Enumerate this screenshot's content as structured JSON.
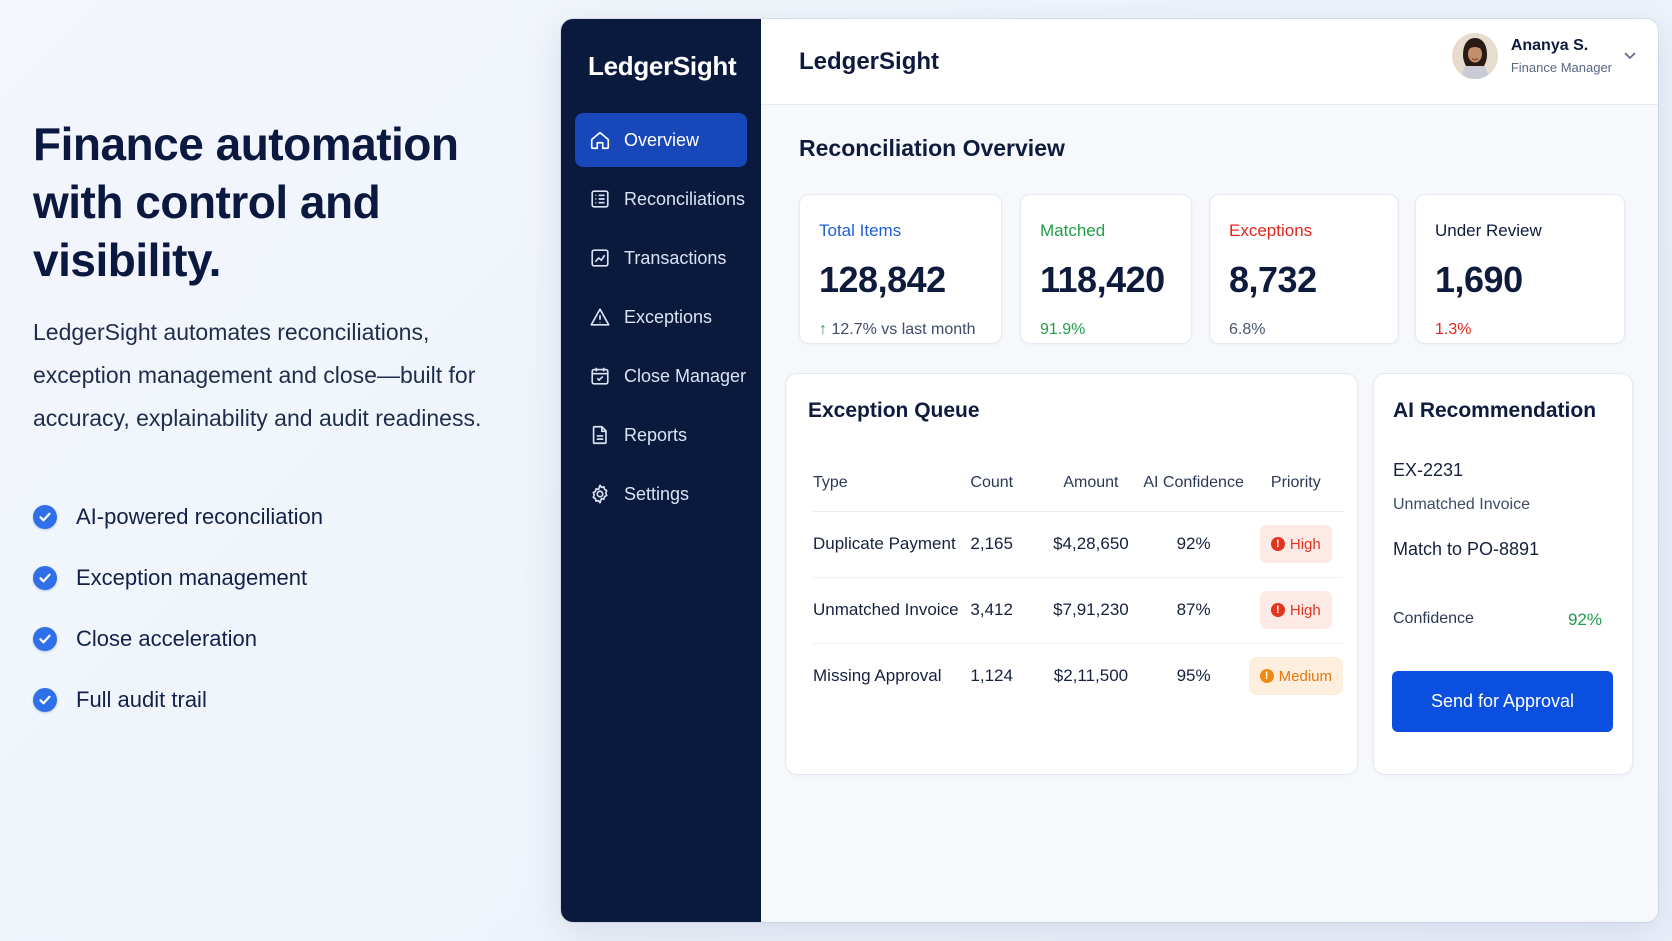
{
  "hero": {
    "headline": "Finance automation with control and visibility.",
    "description": "LedgerSight automates reconciliations, exception management and close—built for accuracy, explainability and audit readiness.",
    "features": [
      "AI-powered reconciliation",
      "Exception management",
      "Close acceleration",
      "Full audit trail"
    ]
  },
  "sidebar": {
    "brand": "LedgerSight",
    "items": [
      {
        "label": "Overview",
        "icon": "home-icon",
        "active": true
      },
      {
        "label": "Reconciliations",
        "icon": "list-icon",
        "active": false
      },
      {
        "label": "Transactions",
        "icon": "chart-icon",
        "active": false
      },
      {
        "label": "Exceptions",
        "icon": "warning-icon",
        "active": false
      },
      {
        "label": "Close Manager",
        "icon": "calendar-icon",
        "active": false
      },
      {
        "label": "Reports",
        "icon": "document-icon",
        "active": false
      },
      {
        "label": "Settings",
        "icon": "gear-icon",
        "active": false
      }
    ]
  },
  "topbar": {
    "title": "LedgerSight",
    "user": {
      "name": "Ananya S.",
      "role": "Finance Manager"
    }
  },
  "overview": {
    "title": "Reconciliation Overview",
    "stats": [
      {
        "label": "Total Items",
        "value": "128,842",
        "sub": "12.7% vs last month",
        "color": "#1f5fd6",
        "sub_color": "#1e9e4a"
      },
      {
        "label": "Matched",
        "value": "118,420",
        "sub": "91.9%",
        "color": "#1e9e4a",
        "sub_color": "#1e9e4a"
      },
      {
        "label": "Exceptions",
        "value": "8,732",
        "sub": "6.8%",
        "color": "#e0261c",
        "sub_color": "#4a5570"
      },
      {
        "label": "Under Review",
        "value": "1,690",
        "sub": "1.3%",
        "color": "#0f1b3d",
        "sub_color": "#e0261c"
      }
    ]
  },
  "queue": {
    "title": "Exception Queue",
    "columns": [
      "Type",
      "Count",
      "Amount",
      "AI Confidence",
      "Priority"
    ],
    "rows": [
      {
        "type": "Duplicate Payment",
        "count": "2,165",
        "amount": "$4,28,650",
        "confidence": "92%",
        "priority": "High"
      },
      {
        "type": "Unmatched Invoice",
        "count": "3,412",
        "amount": "$7,91,230",
        "confidence": "87%",
        "priority": "High"
      },
      {
        "type": "Missing Approval",
        "count": "1,124",
        "amount": "$2,11,500",
        "confidence": "95%",
        "priority": "Medium"
      }
    ]
  },
  "recommendation": {
    "title": "AI Recommendation",
    "id": "EX-2231",
    "type": "Unmatched Invoice",
    "action": "Match to PO-8891",
    "confidence_label": "Confidence",
    "confidence_value": "92%",
    "button": "Send for Approval"
  },
  "colors": {
    "accent": "#1747b8",
    "sidebar": "#0a1a3d",
    "button": "#0a4fe0",
    "positive": "#1e9e4a",
    "negative": "#e0261c"
  }
}
